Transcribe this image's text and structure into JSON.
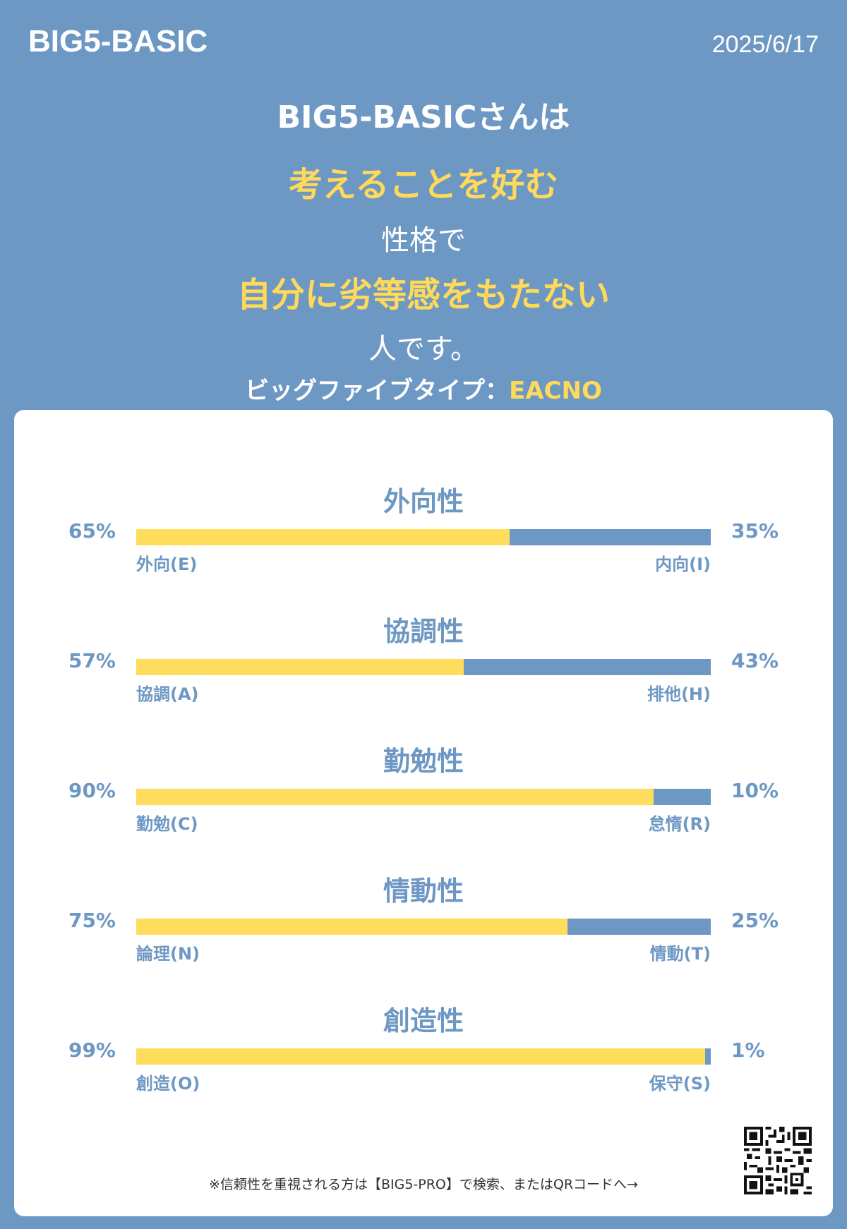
{
  "header": {
    "logo": "BIG5-BASIC",
    "date": "2025/6/17"
  },
  "summary": {
    "line1": "BIG5-BASICさんは",
    "trait_phrase_1": "考えることを好む",
    "connector": "性格で",
    "trait_phrase_2": "自分に劣等感をもたない",
    "ending": "人です。",
    "type_label": "ビッグファイブタイプ：",
    "type_code": "EACNO"
  },
  "colors": {
    "background": "#6e98c4",
    "accent": "#ffd95a",
    "card": "#ffffff"
  },
  "chart_data": {
    "type": "bar",
    "categories": [
      "外向性",
      "協調性",
      "勤勉性",
      "情動性",
      "創造性"
    ],
    "series": [
      {
        "values": [
          65,
          57,
          90,
          75,
          99
        ]
      },
      {
        "values": [
          35,
          43,
          10,
          25,
          1
        ]
      }
    ],
    "traits": [
      {
        "title": "外向性",
        "left_pct": "65%",
        "right_pct": "35%",
        "left_label": "外向(E)",
        "right_label": "内向(I)",
        "left_value": 65
      },
      {
        "title": "協調性",
        "left_pct": "57%",
        "right_pct": "43%",
        "left_label": "協調(A)",
        "right_label": "排他(H)",
        "left_value": 57
      },
      {
        "title": "勤勉性",
        "left_pct": "90%",
        "right_pct": "10%",
        "left_label": "勤勉(C)",
        "right_label": "怠惰(R)",
        "left_value": 90
      },
      {
        "title": "情動性",
        "left_pct": "75%",
        "right_pct": "25%",
        "left_label": "論理(N)",
        "right_label": "情動(T)",
        "left_value": 75
      },
      {
        "title": "創造性",
        "left_pct": "99%",
        "right_pct": "1%",
        "left_label": "創造(O)",
        "right_label": "保守(S)",
        "left_value": 99
      }
    ],
    "ylim": [
      0,
      100
    ]
  },
  "footer": {
    "note": "※信頼性を重視される方は【BIG5-PRO】で検索、またはQRコードへ→",
    "qr_icon": "qr-code-icon"
  }
}
